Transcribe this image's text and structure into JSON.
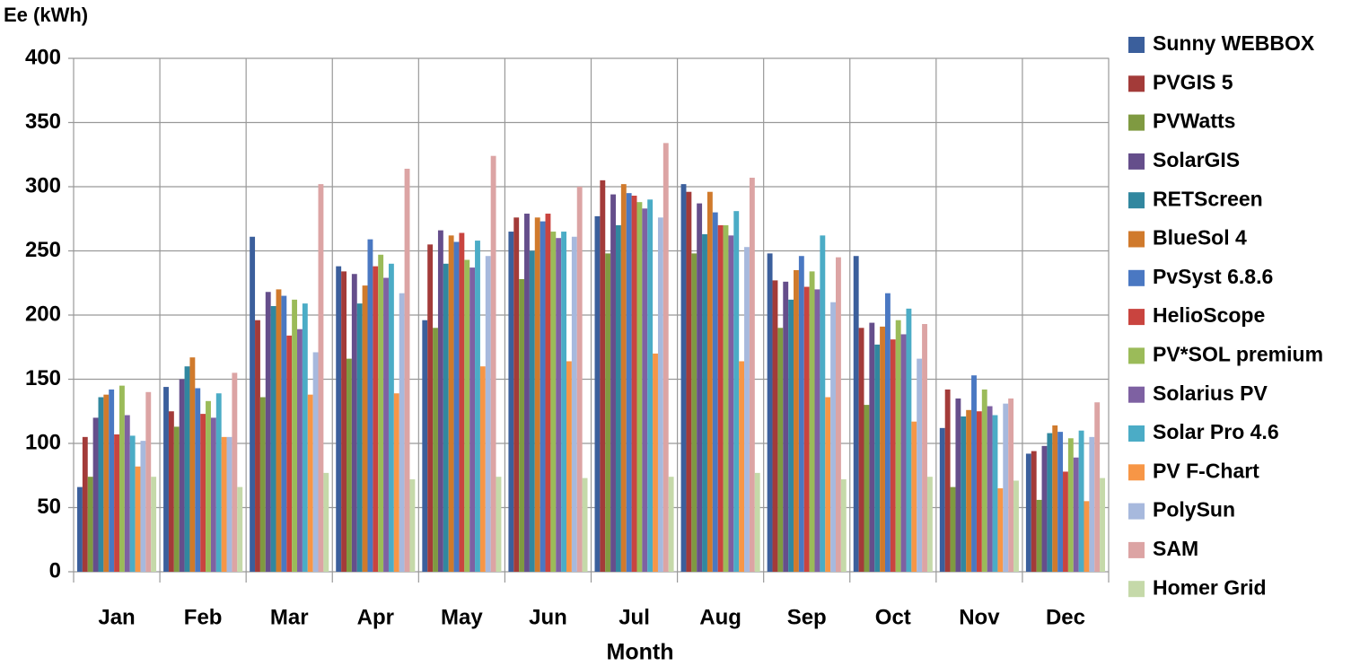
{
  "chart_data": {
    "type": "bar",
    "y_label": "Ee (kWh)",
    "x_label": "Month",
    "categories": [
      "Jan",
      "Feb",
      "Mar",
      "Apr",
      "May",
      "Jun",
      "Jul",
      "Aug",
      "Sep",
      "Oct",
      "Nov",
      "Dec"
    ],
    "ylim": [
      0,
      400
    ],
    "yticks": [
      0,
      50,
      100,
      150,
      200,
      250,
      300,
      350,
      400
    ],
    "grid": true,
    "legend": "right",
    "series": [
      {
        "name": "Sunny WEBBOX",
        "color": "#3b5f9c",
        "values": [
          66,
          144,
          261,
          238,
          196,
          265,
          277,
          302,
          248,
          246,
          112,
          92
        ]
      },
      {
        "name": "PVGIS 5",
        "color": "#a33b39",
        "values": [
          105,
          125,
          196,
          234,
          255,
          276,
          305,
          296,
          227,
          190,
          142,
          94
        ]
      },
      {
        "name": "PVWatts",
        "color": "#7f9a41",
        "values": [
          74,
          113,
          136,
          166,
          190,
          228,
          248,
          248,
          190,
          130,
          66,
          56
        ]
      },
      {
        "name": "SolarGIS",
        "color": "#654e8b",
        "values": [
          120,
          150,
          218,
          232,
          266,
          279,
          294,
          287,
          226,
          194,
          135,
          98
        ]
      },
      {
        "name": "RETScreen",
        "color": "#31879f",
        "values": [
          136,
          160,
          207,
          209,
          240,
          250,
          270,
          263,
          212,
          177,
          121,
          108
        ]
      },
      {
        "name": "BlueSol 4",
        "color": "#d07a2c",
        "values": [
          138,
          167,
          220,
          223,
          262,
          276,
          302,
          296,
          235,
          191,
          126,
          114
        ]
      },
      {
        "name": "PvSyst 6.8.6",
        "color": "#4a78c2",
        "values": [
          142,
          143,
          215,
          259,
          257,
          273,
          295,
          280,
          246,
          217,
          153,
          109
        ]
      },
      {
        "name": "HelioScope",
        "color": "#c9443f",
        "values": [
          107,
          123,
          184,
          238,
          264,
          279,
          293,
          270,
          222,
          181,
          125,
          78
        ]
      },
      {
        "name": "PV*SOL premium",
        "color": "#9bbb59",
        "values": [
          145,
          133,
          212,
          247,
          243,
          265,
          288,
          270,
          234,
          196,
          142,
          104
        ]
      },
      {
        "name": "Solarius PV",
        "color": "#7e61a2",
        "values": [
          122,
          120,
          189,
          229,
          237,
          260,
          283,
          262,
          220,
          185,
          129,
          89
        ]
      },
      {
        "name": "Solar Pro 4.6",
        "color": "#4bacc6",
        "values": [
          106,
          139,
          209,
          240,
          258,
          265,
          290,
          281,
          262,
          205,
          122,
          110
        ]
      },
      {
        "name": "PV F-Chart",
        "color": "#f79646",
        "values": [
          82,
          105,
          138,
          139,
          160,
          164,
          170,
          164,
          136,
          117,
          65,
          55
        ]
      },
      {
        "name": "PolySun",
        "color": "#a7b9dd",
        "values": [
          102,
          105,
          171,
          217,
          246,
          261,
          276,
          253,
          210,
          166,
          131,
          105
        ]
      },
      {
        "name": "SAM",
        "color": "#dca4a4",
        "values": [
          140,
          155,
          302,
          314,
          324,
          300,
          334,
          307,
          245,
          193,
          135,
          132
        ]
      },
      {
        "name": "Homer Grid",
        "color": "#c5d9a9",
        "values": [
          74,
          66,
          77,
          72,
          74,
          73,
          74,
          77,
          72,
          74,
          71,
          73
        ]
      }
    ]
  }
}
